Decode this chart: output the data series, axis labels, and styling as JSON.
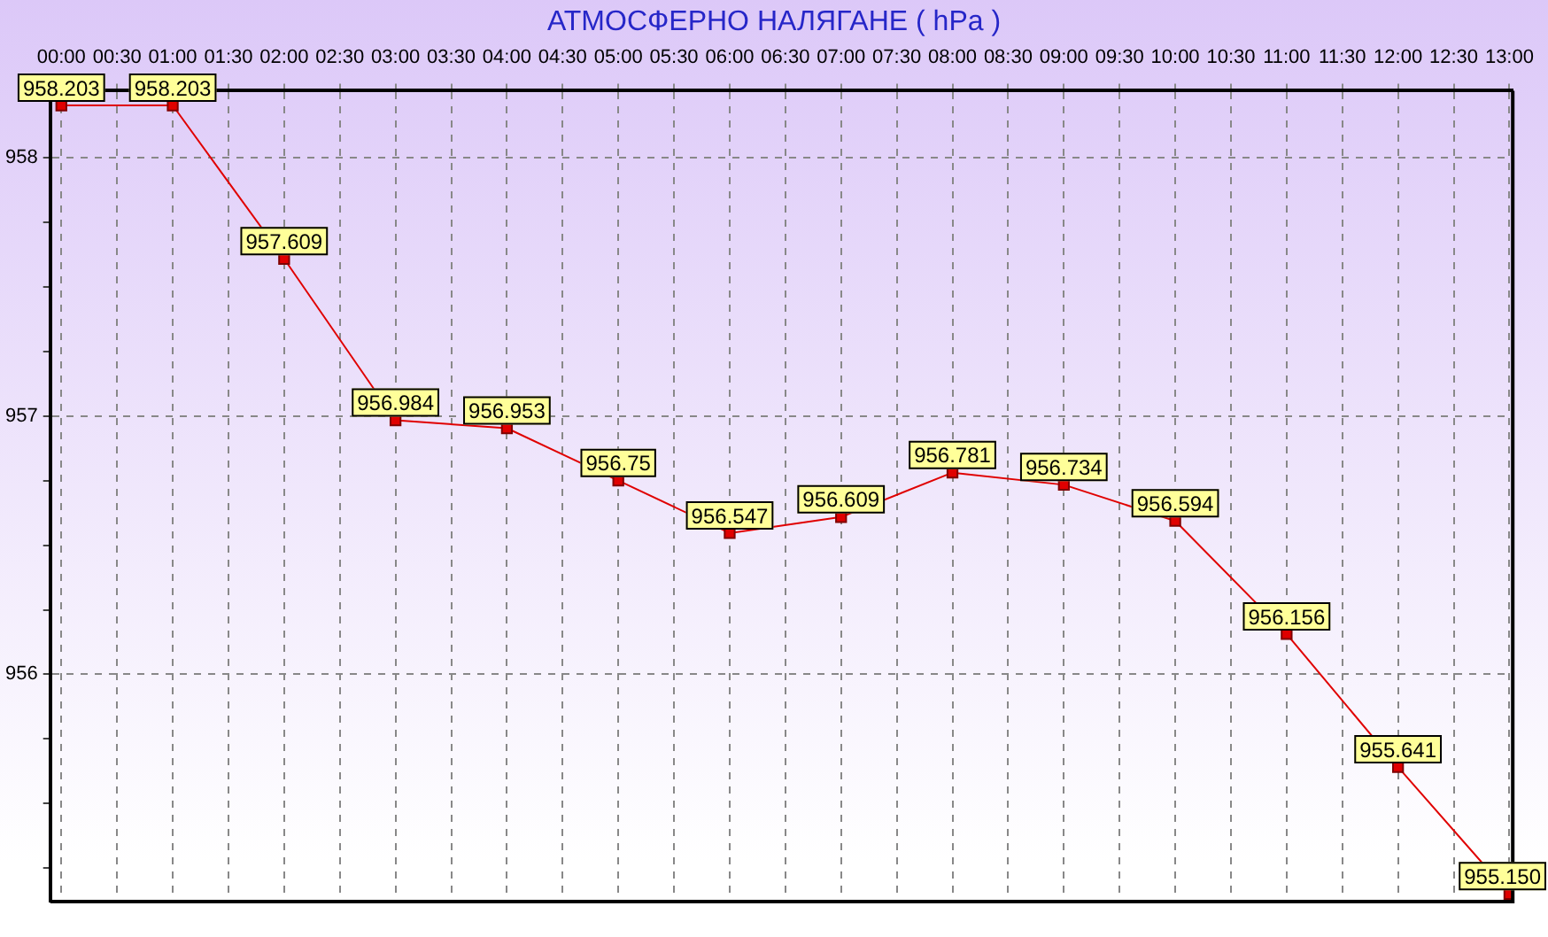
{
  "chart_data": {
    "type": "line",
    "title": "АТМОСФЕРНО НАЛЯГАНЕ  ( hPa )",
    "x": [
      0,
      1,
      2,
      3,
      4,
      5,
      6,
      7,
      8,
      9,
      10,
      11,
      12,
      13
    ],
    "series": [
      {
        "color": "#e00000",
        "values": [
          958.203,
          958.203,
          957.609,
          956.984,
          956.953,
          956.75,
          956.547,
          956.609,
          956.781,
          956.734,
          956.594,
          956.156,
          955.641,
          955.15
        ],
        "value_labels": [
          "958.203",
          "958.203",
          "957.609",
          "956.984",
          "956.953",
          "956.75",
          "956.547",
          "956.609",
          "956.781",
          "956.734",
          "956.594",
          "956.156",
          "955.641",
          "955.150"
        ]
      }
    ],
    "xlim": [
      -0.1,
      13.03
    ],
    "xticks": [
      {
        "value": 0,
        "label": "00:00"
      },
      {
        "value": 0.5,
        "label": "00:30"
      },
      {
        "value": 1,
        "label": "01:00"
      },
      {
        "value": 1.5,
        "label": "01:30"
      },
      {
        "value": 2,
        "label": "02:00"
      },
      {
        "value": 2.5,
        "label": "02:30"
      },
      {
        "value": 3,
        "label": "03:00"
      },
      {
        "value": 3.5,
        "label": "03:30"
      },
      {
        "value": 4,
        "label": "04:00"
      },
      {
        "value": 4.5,
        "label": "04:30"
      },
      {
        "value": 5,
        "label": "05:00"
      },
      {
        "value": 5.5,
        "label": "05:30"
      },
      {
        "value": 6,
        "label": "06:00"
      },
      {
        "value": 6.5,
        "label": "06:30"
      },
      {
        "value": 7,
        "label": "07:00"
      },
      {
        "value": 7.5,
        "label": "07:30"
      },
      {
        "value": 8,
        "label": "08:00"
      },
      {
        "value": 8.5,
        "label": "08:30"
      },
      {
        "value": 9,
        "label": "09:00"
      },
      {
        "value": 9.5,
        "label": "09:30"
      },
      {
        "value": 10,
        "label": "10:00"
      },
      {
        "value": 10.5,
        "label": "10:30"
      },
      {
        "value": 11,
        "label": "11:00"
      },
      {
        "value": 11.5,
        "label": "11:30"
      },
      {
        "value": 12,
        "label": "12:00"
      },
      {
        "value": 12.5,
        "label": "12:30"
      },
      {
        "value": 13,
        "label": "13:00"
      }
    ],
    "ylim": [
      955.12,
      958.26
    ],
    "yticks": [
      {
        "value": 955.25,
        "label": null
      },
      {
        "value": 955.5,
        "label": null
      },
      {
        "value": 955.75,
        "label": null
      },
      956,
      {
        "value": 956.25,
        "label": null
      },
      {
        "value": 956.5,
        "label": null
      },
      {
        "value": 956.75,
        "label": null
      },
      957,
      {
        "value": 957.25,
        "label": null
      },
      {
        "value": 957.5,
        "label": null
      },
      {
        "value": 957.75,
        "label": null
      },
      958,
      {
        "value": 958.25,
        "label": null
      }
    ],
    "grid": true,
    "marker": "square",
    "line_style": "solid"
  }
}
